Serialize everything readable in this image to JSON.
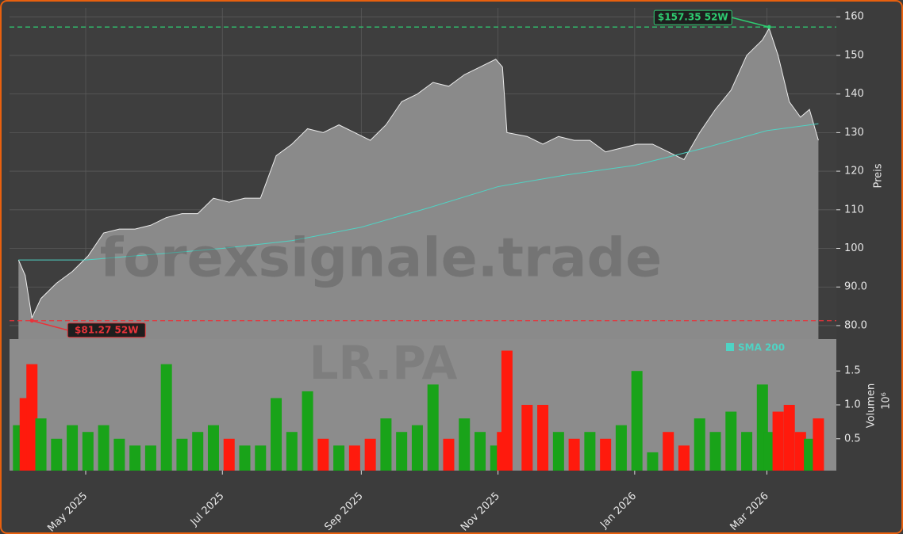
{
  "chart_data": {
    "type": "area",
    "ticker_watermark": "LR.PA",
    "watermark": "forexsignale.trade",
    "y_label": "Preis",
    "y2_label": "Volumen",
    "y2_multiplier": "10⁶",
    "xlim": [
      "2025-03-28",
      "2026-04-01"
    ],
    "xticks": [
      {
        "value": "2025-05-01",
        "label": "May 2025"
      },
      {
        "value": "2025-07-01",
        "label": "Jul 2025"
      },
      {
        "value": "2025-09-01",
        "label": "Sep 2025"
      },
      {
        "value": "2025-11-01",
        "label": "Nov 2025"
      },
      {
        "value": "2026-01-01",
        "label": "Jan 2026"
      },
      {
        "value": "2026-03-01",
        "label": "Mar 2026"
      }
    ],
    "ylim": [
      76.5,
      162.3
    ],
    "yticks": [
      {
        "value": 80,
        "label": "80.0"
      },
      {
        "value": 90,
        "label": "90.0"
      },
      100,
      110,
      120,
      130,
      140,
      150,
      160
    ],
    "y2lim": [
      0.03,
      1.97
    ],
    "y2ticks": [
      0.5,
      {
        "value": 1.0,
        "label": "1.0"
      },
      1.5
    ],
    "grid": true,
    "x": [
      "2025-04-01",
      "2025-04-04",
      "2025-04-07",
      "2025-04-11",
      "2025-04-18",
      "2025-04-25",
      "2025-05-02",
      "2025-05-09",
      "2025-05-16",
      "2025-05-23",
      "2025-05-30",
      "2025-06-06",
      "2025-06-13",
      "2025-06-20",
      "2025-06-27",
      "2025-07-04",
      "2025-07-11",
      "2025-07-18",
      "2025-07-25",
      "2025-08-01",
      "2025-08-08",
      "2025-08-15",
      "2025-08-22",
      "2025-08-29",
      "2025-09-05",
      "2025-09-12",
      "2025-09-19",
      "2025-09-26",
      "2025-10-03",
      "2025-10-10",
      "2025-10-17",
      "2025-10-24",
      "2025-10-31",
      "2025-11-03",
      "2025-11-05",
      "2025-11-14",
      "2025-11-21",
      "2025-11-28",
      "2025-12-05",
      "2025-12-12",
      "2025-12-19",
      "2025-12-26",
      "2026-01-02",
      "2026-01-09",
      "2026-01-16",
      "2026-01-23",
      "2026-01-30",
      "2026-02-06",
      "2026-02-13",
      "2026-02-20",
      "2026-02-27",
      "2026-03-02",
      "2026-03-06",
      "2026-03-11",
      "2026-03-16",
      "2026-03-20",
      "2026-03-24"
    ],
    "series": [
      {
        "name": "Close",
        "color": "#8a8a8a",
        "values": [
          97,
          93,
          82,
          87,
          91,
          94,
          98,
          104,
          105,
          105,
          106,
          108,
          109,
          109,
          113,
          112,
          113,
          113,
          124,
          127,
          131,
          130,
          132,
          130,
          128,
          132,
          138,
          140,
          143,
          142,
          145,
          147,
          149,
          147,
          130,
          129,
          127,
          129,
          128,
          128,
          125,
          126,
          127,
          127,
          125,
          123,
          130,
          136,
          141,
          150,
          154,
          157,
          150,
          138,
          134,
          136,
          128
        ]
      },
      {
        "name": "Volumen",
        "axis": "y2",
        "color": "#19a319",
        "down_color": "#ff1a0d",
        "values": [
          0.7,
          1.1,
          1.6,
          0.8,
          0.5,
          0.7,
          0.6,
          0.7,
          0.5,
          0.4,
          0.4,
          1.6,
          0.5,
          0.6,
          0.7,
          0.5,
          0.4,
          0.4,
          1.1,
          0.6,
          1.2,
          0.5,
          0.4,
          0.4,
          0.5,
          0.8,
          0.6,
          0.7,
          1.3,
          0.5,
          0.8,
          0.6,
          0.4,
          0.6,
          1.8,
          1.0,
          1.0,
          0.6,
          0.5,
          0.6,
          0.5,
          0.7,
          1.5,
          0.3,
          0.6,
          0.4,
          0.8,
          0.6,
          0.9,
          0.6,
          1.3,
          0.6,
          0.9,
          1.0,
          0.6,
          0.5,
          0.8
        ]
      }
    ],
    "sma": {
      "name": "SMA 200",
      "color": "#4fd3c4",
      "x": [
        "2025-04-01",
        "2025-05-01",
        "2025-06-01",
        "2025-07-01",
        "2025-08-01",
        "2025-09-01",
        "2025-10-01",
        "2025-11-01",
        "2025-12-01",
        "2026-01-01",
        "2026-02-01",
        "2026-03-01",
        "2026-03-24"
      ],
      "values": [
        97,
        97,
        98.5,
        100,
        102,
        105.5,
        110.5,
        116,
        119,
        121.5,
        126,
        130.5,
        132.3
      ]
    },
    "annotations": [
      {
        "x": "2026-03-02",
        "value": 157.35,
        "label": "$157.35 52W",
        "color": "#2ecc71"
      },
      {
        "x": "2025-04-07",
        "value": 81.27,
        "label": "$81.27 52W",
        "color": "#e8333a"
      }
    ]
  }
}
